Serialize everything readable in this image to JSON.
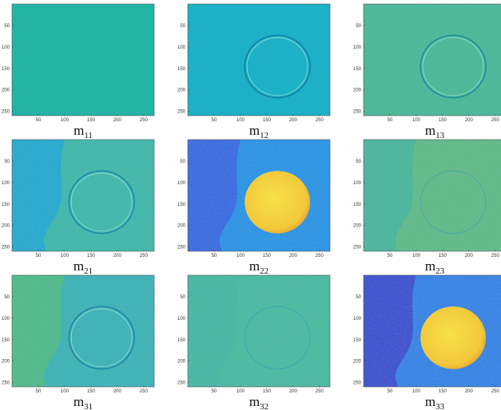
{
  "axes": {
    "xlim": [
      0,
      270
    ],
    "ylim": [
      0,
      260
    ],
    "xticks": [
      50,
      100,
      150,
      200,
      250
    ],
    "yticks": [
      50,
      100,
      150,
      200,
      250
    ]
  },
  "panels": [
    {
      "label": {
        "base": "m",
        "sub": "11"
      }
    },
    {
      "label": {
        "base": "m",
        "sub": "12"
      }
    },
    {
      "label": {
        "base": "m",
        "sub": "13"
      }
    },
    {
      "label": {
        "base": "m",
        "sub": "21"
      }
    },
    {
      "label": {
        "base": "m",
        "sub": "22"
      }
    },
    {
      "label": {
        "base": "m",
        "sub": "23"
      }
    },
    {
      "label": {
        "base": "m",
        "sub": "31"
      }
    },
    {
      "label": {
        "base": "m",
        "sub": "32"
      }
    },
    {
      "label": {
        "base": "m",
        "sub": "33"
      }
    }
  ]
}
